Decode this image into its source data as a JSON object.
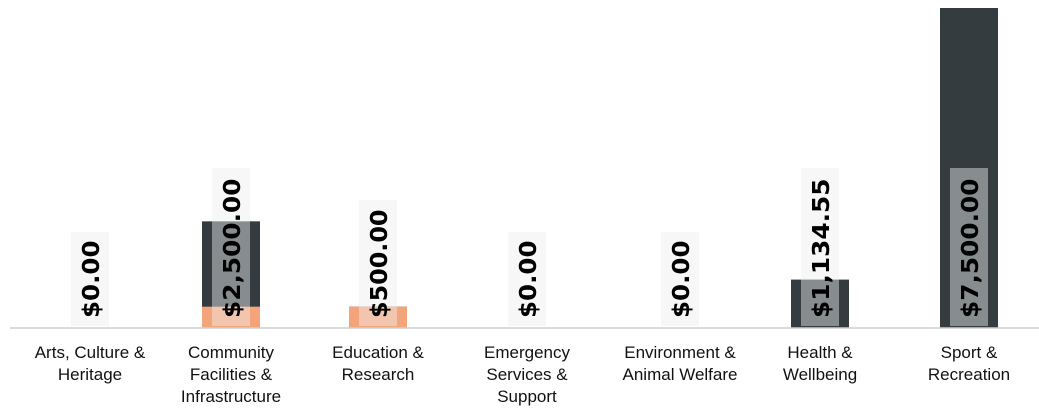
{
  "chart_data": {
    "type": "bar",
    "categories": [
      "Arts, Culture &\nHeritage",
      "Community\nFacilities &\nInfrastructure",
      "Education &\nResearch",
      "Emergency\nServices &\nSupport",
      "Environment &\nAnimal Welfare",
      "Health &\nWellbeing",
      "Sport &\nRecreation"
    ],
    "series": [
      {
        "values": [
          0,
          2500,
          500,
          0,
          0,
          1134.55,
          7500
        ],
        "color": "#343c40"
      },
      {
        "values": [
          0,
          500,
          500,
          0,
          0,
          0,
          0
        ],
        "color": "#f4a47a"
      }
    ],
    "data_labels": [
      "$0.00",
      "$2,500.00",
      "$500.00",
      "$0.00",
      "$0.00",
      "$1,134.55",
      "$7,500.00"
    ],
    "ylim": [
      0,
      7500
    ],
    "grid": false,
    "legend": "none",
    "colors": {
      "label_box": "#ededed",
      "axis": "#cfcfcf",
      "text": "#111111"
    }
  }
}
